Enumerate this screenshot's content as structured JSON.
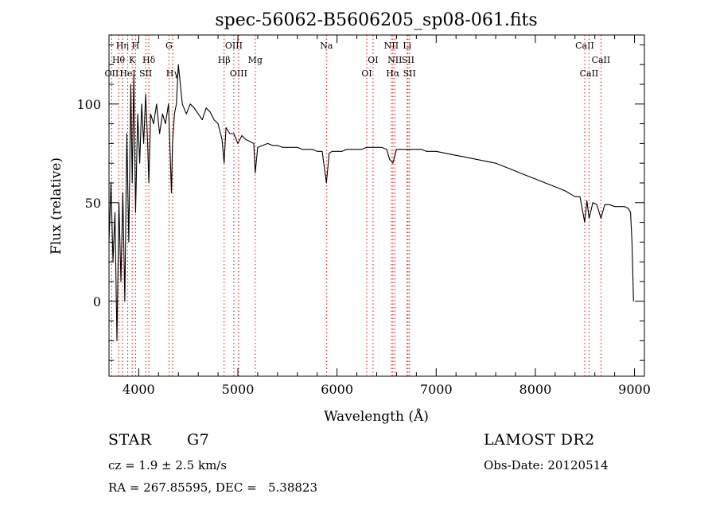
{
  "chart_data": {
    "type": "line",
    "title": "spec-56062-B5606205_sp08-061.fits",
    "xlabel": "Wavelength (Å)",
    "ylabel": "Flux (relative)",
    "xlim": [
      3700,
      9100
    ],
    "ylim": [
      -38,
      135
    ],
    "x_ticks": [
      4000,
      5000,
      6000,
      7000,
      8000,
      9000
    ],
    "y_ticks": [
      0,
      50,
      100
    ],
    "grid": false,
    "legend": "none",
    "line_color": "#000000",
    "marker_color": "#ff0000",
    "series": [
      {
        "x": [
          3700,
          3720,
          3740,
          3760,
          3780,
          3800,
          3820,
          3840,
          3860,
          3880,
          3900,
          3920,
          3934,
          3950,
          3968,
          3990,
          4010,
          4030,
          4050,
          4070,
          4090,
          4102,
          4120,
          4150,
          4180,
          4210,
          4240,
          4270,
          4300,
          4330,
          4340,
          4360,
          4380,
          4400,
          4440,
          4480,
          4520,
          4560,
          4600,
          4640,
          4680,
          4720,
          4760,
          4800,
          4840,
          4861,
          4880,
          4920,
          4960,
          5000,
          5040,
          5080,
          5120,
          5160,
          5175,
          5200,
          5250,
          5300,
          5350,
          5400,
          5450,
          5500,
          5550,
          5600,
          5650,
          5700,
          5750,
          5800,
          5850,
          5893,
          5920,
          5950,
          6000,
          6050,
          6100,
          6150,
          6200,
          6250,
          6300,
          6350,
          6400,
          6450,
          6500,
          6530,
          6563,
          6600,
          6650,
          6700,
          6750,
          6800,
          6850,
          6900,
          6950,
          7000,
          7100,
          7200,
          7300,
          7400,
          7500,
          7600,
          7700,
          7800,
          7900,
          8000,
          8100,
          8200,
          8300,
          8400,
          8450,
          8498,
          8520,
          8542,
          8580,
          8620,
          8662,
          8700,
          8750,
          8800,
          8850,
          8900,
          8940,
          8960,
          8975,
          8985,
          8990
        ],
        "y": [
          30,
          60,
          20,
          45,
          -20,
          50,
          10,
          55,
          0,
          85,
          30,
          110,
          60,
          115,
          45,
          95,
          70,
          100,
          80,
          105,
          80,
          60,
          95,
          90,
          100,
          85,
          95,
          90,
          100,
          55,
          80,
          95,
          100,
          120,
          100,
          95,
          100,
          98,
          95,
          92,
          98,
          96,
          92,
          90,
          82,
          70,
          88,
          85,
          85,
          80,
          84,
          82,
          81,
          80,
          65,
          78,
          79,
          80,
          79,
          79,
          78,
          78,
          78,
          78,
          77,
          77,
          77,
          76,
          76,
          60,
          75,
          76,
          76,
          76,
          77,
          77,
          77,
          77,
          78,
          78,
          78,
          78,
          77,
          72,
          70,
          77,
          77,
          77,
          77,
          77,
          77,
          76,
          76,
          76,
          75,
          74,
          73,
          72,
          71,
          70,
          68,
          66,
          64,
          62,
          60,
          58,
          56,
          53,
          53,
          40,
          51,
          42,
          50,
          49,
          42,
          49,
          49,
          48,
          48,
          48,
          47,
          45,
          30,
          10,
          0
        ]
      }
    ],
    "lines": [
      {
        "label": "OII",
        "wave": 3727,
        "row": 3
      },
      {
        "label": "Hθ",
        "wave": 3797,
        "row": 2
      },
      {
        "label": "Hη",
        "wave": 3835,
        "row": 1
      },
      {
        "label": "HeI",
        "wave": 3889,
        "row": 3
      },
      {
        "label": "K",
        "wave": 3934,
        "row": 2
      },
      {
        "label": "H",
        "wave": 3968,
        "row": 1
      },
      {
        "label": "SII",
        "wave": 4070,
        "row": 3
      },
      {
        "label": "Hδ",
        "wave": 4102,
        "row": 2
      },
      {
        "label": "G",
        "wave": 4305,
        "row": 1
      },
      {
        "label": "Hγ",
        "wave": 4341,
        "row": 3
      },
      {
        "label": "Hβ",
        "wave": 4861,
        "row": 2
      },
      {
        "label": "OIII",
        "wave": 4959,
        "row": 1
      },
      {
        "label": "OIII",
        "wave": 5007,
        "row": 3
      },
      {
        "label": "Mg",
        "wave": 5175,
        "row": 2
      },
      {
        "label": "Na",
        "wave": 5893,
        "row": 1
      },
      {
        "label": "OI",
        "wave": 6300,
        "row": 3
      },
      {
        "label": "OI",
        "wave": 6363,
        "row": 2
      },
      {
        "label": "NII",
        "wave": 6548,
        "row": 1
      },
      {
        "label": "Hα",
        "wave": 6563,
        "row": 3
      },
      {
        "label": "NII",
        "wave": 6583,
        "row": 2
      },
      {
        "label": "Li",
        "wave": 6707,
        "row": 1
      },
      {
        "label": "SII",
        "wave": 6716,
        "row": 2
      },
      {
        "label": "SII",
        "wave": 6731,
        "row": 3
      },
      {
        "label": "CaII",
        "wave": 8498,
        "row": 1
      },
      {
        "label": "CaII",
        "wave": 8542,
        "row": 3
      },
      {
        "label": "CaII",
        "wave": 8662,
        "row": 2
      }
    ]
  },
  "info": {
    "class_label": "STAR",
    "subclass": "G7",
    "survey": "LAMOST DR2",
    "cz_text": "cz = 1.9 ± 2.5 km/s",
    "obs_date": "Obs-Date: 20120514",
    "coords": "RA = 267.85595, DEC =   5.38823"
  }
}
